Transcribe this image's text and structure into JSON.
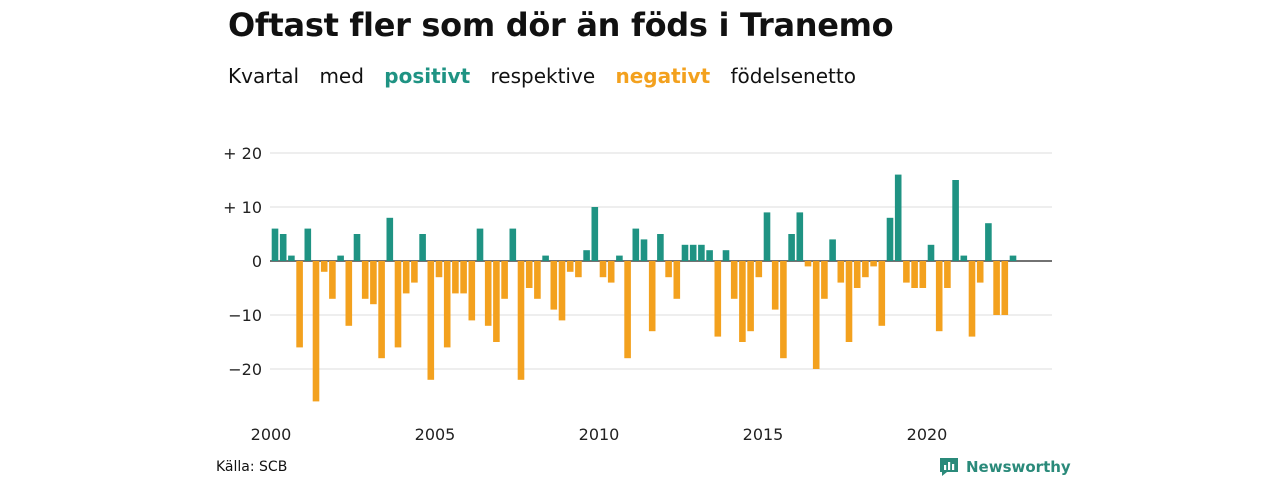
{
  "title": "Oftast fler som dör än föds i Tranemo",
  "subtitle": {
    "w1": "Kvartal",
    "w2": "med",
    "positive": "positivt",
    "w3": "respektive",
    "negative": "negativt",
    "w4": "födelsenetto"
  },
  "colors": {
    "positive": "#1f9383",
    "negative": "#f3a11e",
    "grid": "#dddddd",
    "axis": "#444444"
  },
  "source": "Källa: SCB",
  "brand": "Newsworthy",
  "chart_data": {
    "type": "bar",
    "x_start": "2000 Q1",
    "values": [
      6,
      5,
      1,
      -16,
      6,
      -26,
      -2,
      -7,
      1,
      -12,
      5,
      -7,
      -8,
      -18,
      8,
      -16,
      -6,
      -4,
      5,
      -22,
      -3,
      -16,
      -6,
      -6,
      -11,
      6,
      -12,
      -15,
      -7,
      6,
      -22,
      -5,
      -7,
      1,
      -9,
      -11,
      -2,
      -3,
      2,
      10,
      -3,
      -4,
      1,
      -18,
      6,
      4,
      -13,
      5,
      -3,
      -7,
      3,
      3,
      3,
      2,
      -14,
      2,
      -7,
      -15,
      -13,
      -3,
      9,
      -9,
      -18,
      5,
      9,
      -1,
      -20,
      -7,
      4,
      -4,
      -15,
      -5,
      -3,
      -1,
      -12,
      8,
      16,
      -4,
      -5,
      -5,
      3,
      -13,
      -5,
      15,
      1,
      -14,
      -4,
      7,
      -10,
      -10,
      1
    ],
    "ylim": [
      -28,
      22
    ],
    "y_ticks": [
      20,
      10,
      0,
      -10,
      -20
    ],
    "y_tick_labels": [
      "+ 20",
      "+ 10",
      "0",
      "−10",
      "−20"
    ],
    "x_tick_labels": [
      {
        "year": 2000,
        "label": "2000"
      },
      {
        "year": 2005,
        "label": "2005"
      },
      {
        "year": 2010,
        "label": "2010"
      },
      {
        "year": 2015,
        "label": "2015"
      },
      {
        "year": 2020,
        "label": "2020"
      }
    ],
    "grid": true,
    "legend": "in subtitle"
  }
}
